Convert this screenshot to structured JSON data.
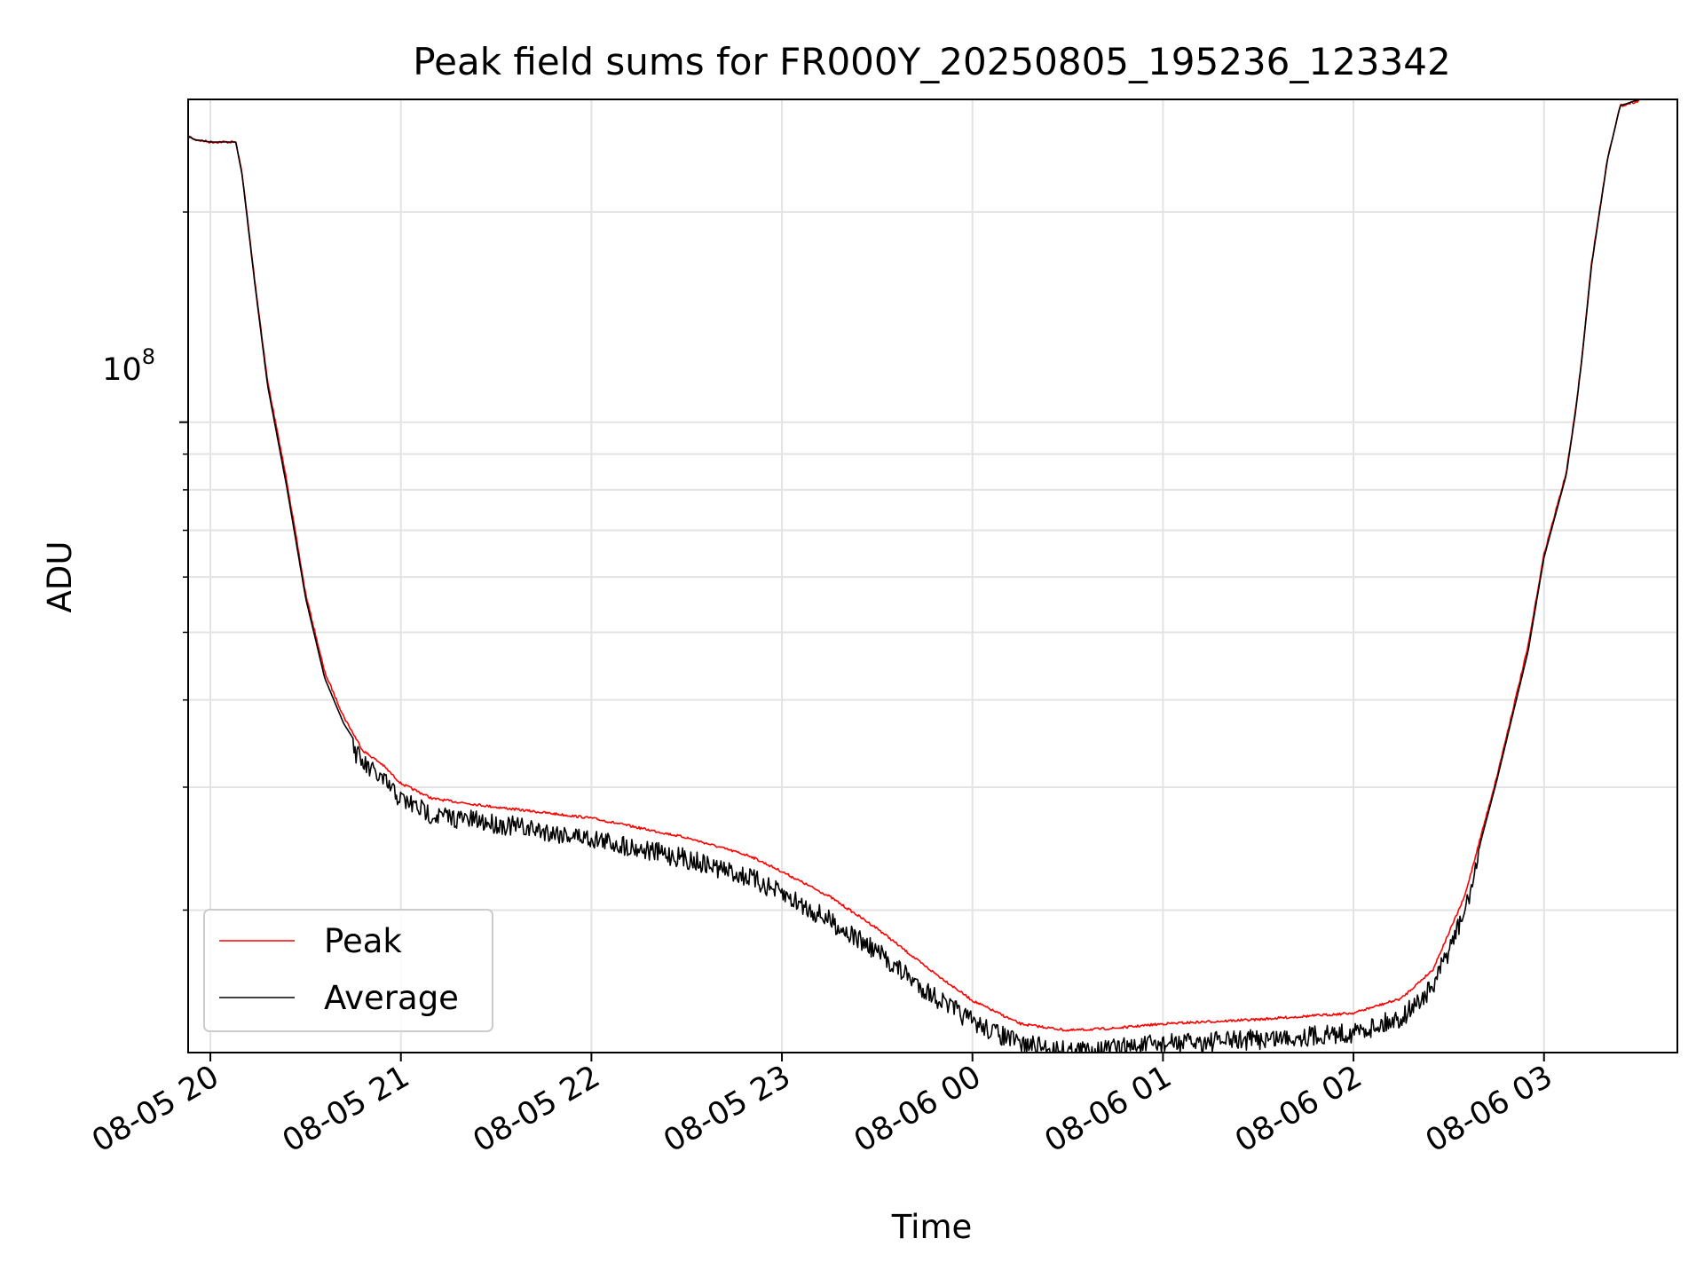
{
  "chart_data": {
    "type": "line",
    "title": "Peak field sums for FR000Y_20250805_195236_123342",
    "xlabel": "Time",
    "ylabel": "ADU",
    "y_scale": "log",
    "ylim": [
      12500000,
      290000000
    ],
    "xlim": [
      "2025-08-05T19:53:00",
      "2025-08-06T03:42:00"
    ],
    "grid": true,
    "x_tick_labels": [
      "08-05 20",
      "08-05 21",
      "08-05 22",
      "08-05 23",
      "08-06 00",
      "08-06 01",
      "08-06 02",
      "08-06 03"
    ],
    "x_ticks": [
      "2025-08-05T20:00",
      "2025-08-05T21:00",
      "2025-08-05T22:00",
      "2025-08-05T23:00",
      "2025-08-06T00:00",
      "2025-08-06T01:00",
      "2025-08-06T02:00",
      "2025-08-06T03:00"
    ],
    "y_major_tick": {
      "value": 100000000,
      "base": "10",
      "exponent": "8"
    },
    "y_minor_ticks": [
      20000000,
      30000000,
      40000000,
      50000000,
      60000000,
      70000000,
      80000000,
      90000000,
      200000000
    ],
    "legend": {
      "placement": "lower-left",
      "entries": [
        "Peak",
        "Average"
      ]
    },
    "series": [
      {
        "name": "Peak",
        "color": "#ff0000",
        "points": [
          [
            "2025-08-05T19:53",
            258000000
          ],
          [
            "2025-08-05T19:55",
            255000000
          ],
          [
            "2025-08-05T20:00",
            253000000
          ],
          [
            "2025-08-05T20:08",
            253000000
          ],
          [
            "2025-08-05T20:10",
            228000000
          ],
          [
            "2025-08-05T20:14",
            160000000
          ],
          [
            "2025-08-05T20:18",
            115000000
          ],
          [
            "2025-08-05T20:24",
            83000000
          ],
          [
            "2025-08-05T20:30",
            57000000
          ],
          [
            "2025-08-05T20:36",
            44000000
          ],
          [
            "2025-08-05T20:42",
            38000000
          ],
          [
            "2025-08-05T20:48",
            34000000
          ],
          [
            "2025-08-05T20:54",
            32500000
          ],
          [
            "2025-08-05T21:00",
            30500000
          ],
          [
            "2025-08-05T21:10",
            29000000
          ],
          [
            "2025-08-05T21:30",
            28200000
          ],
          [
            "2025-08-05T22:00",
            27200000
          ],
          [
            "2025-08-05T22:30",
            25500000
          ],
          [
            "2025-08-05T22:50",
            24000000
          ],
          [
            "2025-08-05T23:00",
            22800000
          ],
          [
            "2025-08-05T23:15",
            21000000
          ],
          [
            "2025-08-05T23:30",
            18900000
          ],
          [
            "2025-08-05T23:45",
            16700000
          ],
          [
            "2025-08-06T00:00",
            14900000
          ],
          [
            "2025-08-06T00:15",
            13800000
          ],
          [
            "2025-08-06T00:30",
            13500000
          ],
          [
            "2025-08-06T00:45",
            13600000
          ],
          [
            "2025-08-06T01:00",
            13800000
          ],
          [
            "2025-08-06T01:30",
            14000000
          ],
          [
            "2025-08-06T02:00",
            14300000
          ],
          [
            "2025-08-06T02:15",
            15000000
          ],
          [
            "2025-08-06T02:25",
            16500000
          ],
          [
            "2025-08-06T02:35",
            21000000
          ],
          [
            "2025-08-06T02:45",
            31000000
          ],
          [
            "2025-08-06T02:55",
            48000000
          ],
          [
            "2025-08-06T03:00",
            65000000
          ],
          [
            "2025-08-06T03:07",
            85000000
          ],
          [
            "2025-08-06T03:10",
            105000000
          ],
          [
            "2025-08-06T03:12",
            125000000
          ],
          [
            "2025-08-06T03:15",
            170000000
          ],
          [
            "2025-08-06T03:20",
            240000000
          ],
          [
            "2025-08-06T03:24",
            285000000
          ],
          [
            "2025-08-06T03:30",
            290000000
          ]
        ]
      },
      {
        "name": "Average",
        "color": "#000000",
        "points": [
          [
            "2025-08-05T19:53",
            257000000
          ],
          [
            "2025-08-05T19:55",
            254000000
          ],
          [
            "2025-08-05T20:00",
            252000000
          ],
          [
            "2025-08-05T20:08",
            252000000
          ],
          [
            "2025-08-05T20:10",
            226000000
          ],
          [
            "2025-08-05T20:14",
            158000000
          ],
          [
            "2025-08-05T20:18",
            113000000
          ],
          [
            "2025-08-05T20:24",
            81000000
          ],
          [
            "2025-08-05T20:30",
            56000000
          ],
          [
            "2025-08-05T20:36",
            43000000
          ],
          [
            "2025-08-05T20:42",
            37000000
          ],
          [
            "2025-08-05T20:48",
            33500000
          ],
          [
            "2025-08-05T20:54",
            31800000
          ],
          [
            "2025-08-05T21:00",
            29800000
          ],
          [
            "2025-08-05T21:10",
            28300000
          ],
          [
            "2025-08-05T21:30",
            27500000
          ],
          [
            "2025-08-05T22:00",
            26200000
          ],
          [
            "2025-08-05T22:30",
            24500000
          ],
          [
            "2025-08-05T22:50",
            23000000
          ],
          [
            "2025-08-05T23:00",
            21800000
          ],
          [
            "2025-08-05T23:15",
            20000000
          ],
          [
            "2025-08-05T23:30",
            18000000
          ],
          [
            "2025-08-05T23:45",
            15900000
          ],
          [
            "2025-08-06T00:00",
            14300000
          ],
          [
            "2025-08-06T00:15",
            13300000
          ],
          [
            "2025-08-06T00:30",
            13000000
          ],
          [
            "2025-08-06T00:45",
            13100000
          ],
          [
            "2025-08-06T01:00",
            13300000
          ],
          [
            "2025-08-06T01:30",
            13500000
          ],
          [
            "2025-08-06T02:00",
            13800000
          ],
          [
            "2025-08-06T02:15",
            14500000
          ],
          [
            "2025-08-06T02:25",
            16000000
          ],
          [
            "2025-08-06T02:35",
            20500000
          ],
          [
            "2025-08-06T02:45",
            30500000
          ],
          [
            "2025-08-06T02:55",
            47000000
          ],
          [
            "2025-08-06T03:00",
            64000000
          ],
          [
            "2025-08-06T03:07",
            84000000
          ],
          [
            "2025-08-06T03:10",
            104000000
          ],
          [
            "2025-08-06T03:12",
            124000000
          ],
          [
            "2025-08-06T03:15",
            168000000
          ],
          [
            "2025-08-06T03:20",
            238000000
          ],
          [
            "2025-08-06T03:24",
            284000000
          ],
          [
            "2025-08-06T03:30",
            290000000
          ]
        ]
      }
    ]
  }
}
